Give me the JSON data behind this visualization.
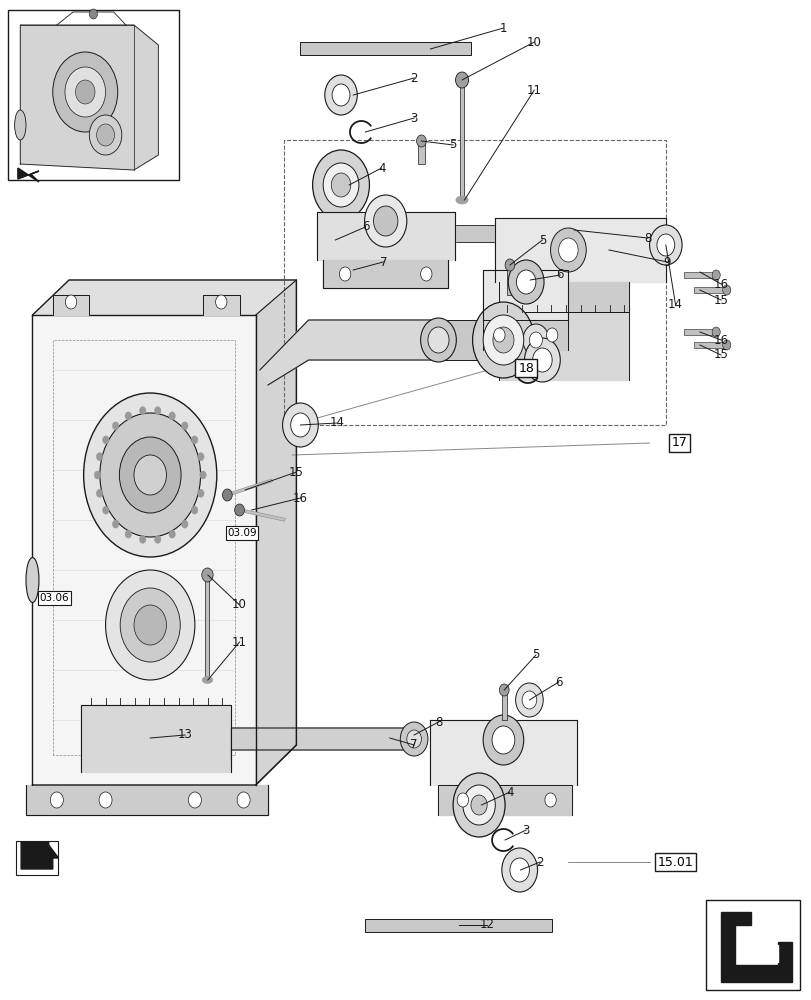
{
  "fig_width": 8.12,
  "fig_height": 10.0,
  "dpi": 100,
  "bg_color": "#ffffff",
  "line_color": "#1a1a1a"
}
